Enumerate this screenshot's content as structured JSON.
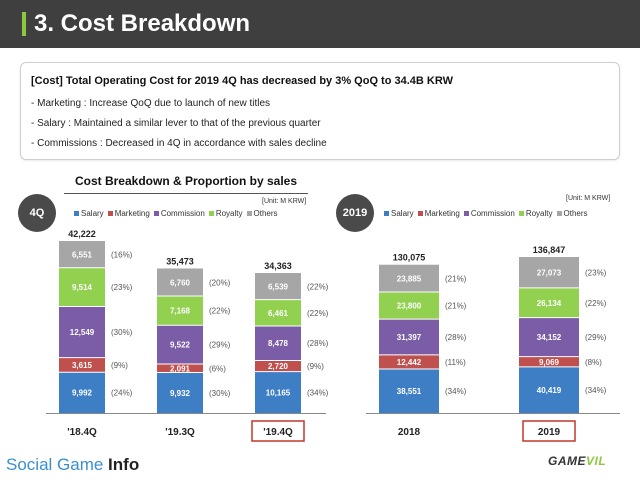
{
  "header": {
    "title": "3. Cost Breakdown"
  },
  "summary": {
    "headline": "[Cost] Total Operating Cost for 2019 4Q has decreased by 3% QoQ to 34.4B KRW",
    "bullets": [
      "-   Marketing : Increase QoQ due to launch of new titles",
      "-   Salary : Maintained a similar lever to that of the previous quarter",
      "-   Commissions : Decreased in 4Q in accordance with sales decline"
    ]
  },
  "left_section": {
    "subtitle": "Cost Breakdown & Proportion by sales",
    "badge": "4Q",
    "unit": "[Unit: M KRW]"
  },
  "right_section": {
    "badge": "2019",
    "unit": "[Unit: M KRW]"
  },
  "colors": {
    "salary": "#3e7ec4",
    "marketing": "#c0504d",
    "commission": "#7b5ca6",
    "royalty": "#92d050",
    "others": "#a6a6a6",
    "highlight": "#c0392b"
  },
  "chart_data": [
    {
      "type": "bar",
      "stacked": true,
      "categories": [
        "'18.4Q",
        "'19.3Q",
        "'19.4Q"
      ],
      "highlighted_category": "'19.4Q",
      "totals": [
        "42,222",
        "35,473",
        "34,363"
      ],
      "series": [
        {
          "name": "Salary",
          "values": [
            9992,
            9932,
            10165
          ],
          "labels": [
            "9,992",
            "9,932",
            "10,165"
          ],
          "pct": [
            "(24%)",
            "(30%)",
            "(34%)"
          ]
        },
        {
          "name": "Marketing",
          "values": [
            3615,
            2091,
            2720
          ],
          "labels": [
            "3,615",
            "2,091",
            "2,720"
          ],
          "pct": [
            "(9%)",
            "(6%)",
            "(9%)"
          ]
        },
        {
          "name": "Commission",
          "values": [
            12549,
            9522,
            8478
          ],
          "labels": [
            "12,549",
            "9,522",
            "8,478"
          ],
          "pct": [
            "(30%)",
            "(29%)",
            "(28%)"
          ]
        },
        {
          "name": "Royalty",
          "values": [
            9514,
            7168,
            6461
          ],
          "labels": [
            "9,514",
            "7,168",
            "6,461"
          ],
          "pct": [
            "(23%)",
            "(22%)",
            "(22%)"
          ]
        },
        {
          "name": "Others",
          "values": [
            6551,
            6760,
            6539
          ],
          "labels": [
            "6,551",
            "6,760",
            "6,539"
          ],
          "pct": [
            "(16%)",
            "(20%)",
            "(22%)"
          ]
        }
      ]
    },
    {
      "type": "bar",
      "stacked": true,
      "categories": [
        "2018",
        "2019"
      ],
      "highlighted_category": "2019",
      "totals": [
        "130,075",
        "136,847"
      ],
      "series": [
        {
          "name": "Salary",
          "values": [
            38551,
            40419
          ],
          "labels": [
            "38,551",
            "40,419"
          ],
          "pct": [
            "(34%)",
            "(34%)"
          ]
        },
        {
          "name": "Marketing",
          "values": [
            12442,
            9069
          ],
          "labels": [
            "12,442",
            "9,069"
          ],
          "pct": [
            "(11%)",
            "(8%)"
          ]
        },
        {
          "name": "Commission",
          "values": [
            31397,
            34152
          ],
          "labels": [
            "31,397",
            "34,152"
          ],
          "pct": [
            "(28%)",
            "(29%)"
          ]
        },
        {
          "name": "Royalty",
          "values": [
            23800,
            26134
          ],
          "labels": [
            "23,800",
            "26,134"
          ],
          "pct": [
            "(21%)",
            "(22%)"
          ]
        },
        {
          "name": "Others",
          "values": [
            23885,
            27073
          ],
          "labels": [
            "23,885",
            "27,073"
          ],
          "pct": [
            "(21%)",
            "(23%)"
          ]
        }
      ]
    }
  ],
  "footer": {
    "brand_prefix": "Social Game ",
    "brand_suffix": "Info",
    "logo_a": "GAME",
    "logo_b": "VIL"
  }
}
